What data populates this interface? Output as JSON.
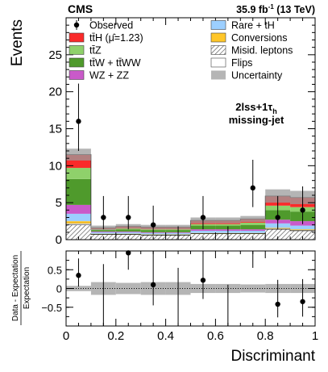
{
  "header": {
    "experiment": "CMS",
    "lumi_value": "35.9 fb",
    "lumi_exp": "-1",
    "lumi_energy": " (13 TeV)"
  },
  "annotation": {
    "channel_main": "2lss+1τ",
    "channel_sub": "h",
    "category": "missing-jet"
  },
  "colors": {
    "ttH": "#fa2a2a",
    "ttZ": "#8fd16b",
    "ttW": "#4f9a2c",
    "WZZZ": "#c95ac9",
    "Rare": "#9ccfff",
    "Conv": "#ffc629",
    "Fakes_hatch": "#555555",
    "Flips": "#ffffff",
    "Unc": "#b5b5b5"
  },
  "legend": [
    {
      "key": "Observed",
      "label": "Observed",
      "kind": "marker",
      "color": "#000000"
    },
    {
      "key": "ttH",
      "label": "tt̄H (μ̂=1.23)",
      "kind": "box",
      "color": "#fa2a2a"
    },
    {
      "key": "ttZ",
      "label": "tt̄Z",
      "kind": "box",
      "color": "#8fd16b"
    },
    {
      "key": "ttW",
      "label": "tt̄W + tt̄WW",
      "kind": "box",
      "color": "#4f9a2c"
    },
    {
      "key": "WZZZ",
      "label": "WZ + ZZ",
      "kind": "box",
      "color": "#c95ac9"
    },
    {
      "key": "Rare",
      "label": "Rare + tH",
      "kind": "box",
      "color": "#9ccfff"
    },
    {
      "key": "Conv",
      "label": "Conversions",
      "kind": "box",
      "color": "#ffc629"
    },
    {
      "key": "Fakes",
      "label": "Misid. leptons",
      "kind": "hatch",
      "color": "#555555"
    },
    {
      "key": "Flips",
      "label": "Flips",
      "kind": "box",
      "color": "#ffffff"
    },
    {
      "key": "Unc",
      "label": "Uncertainty",
      "kind": "box",
      "color": "#b5b5b5"
    }
  ],
  "chart_data": [
    {
      "type": "bar",
      "stacked": true,
      "xlabel": "",
      "ylabel": "Events",
      "xlim": [
        0,
        1
      ],
      "ylim": [
        0,
        30
      ],
      "bin_edges": [
        0,
        0.1,
        0.2,
        0.3,
        0.4,
        0.5,
        0.6,
        0.7,
        0.8,
        0.9,
        1.0
      ],
      "yticks": [
        0,
        5,
        10,
        15,
        20,
        25
      ],
      "stack": [
        {
          "key": "Fakes",
          "values": [
            2.0,
            0.7,
            0.7,
            0.6,
            0.6,
            0.8,
            0.8,
            0.8,
            1.4,
            1.2
          ]
        },
        {
          "key": "Flips",
          "values": [
            0.2,
            0.05,
            0.05,
            0.05,
            0.05,
            0.05,
            0.05,
            0.05,
            0.1,
            0.1
          ]
        },
        {
          "key": "Conv",
          "values": [
            0.3,
            0.05,
            0.05,
            0.05,
            0.05,
            0.05,
            0.05,
            0.05,
            0.1,
            0.1
          ]
        },
        {
          "key": "Rare",
          "values": [
            1.0,
            0.2,
            0.2,
            0.2,
            0.2,
            0.3,
            0.3,
            0.3,
            0.6,
            0.5
          ]
        },
        {
          "key": "WZZZ",
          "values": [
            1.2,
            0.1,
            0.1,
            0.1,
            0.1,
            0.2,
            0.2,
            0.2,
            0.5,
            0.6
          ]
        },
        {
          "key": "ttW",
          "values": [
            3.5,
            0.2,
            0.3,
            0.3,
            0.3,
            0.5,
            0.5,
            0.6,
            1.3,
            1.3
          ]
        },
        {
          "key": "ttZ",
          "values": [
            1.5,
            0.1,
            0.1,
            0.1,
            0.1,
            0.2,
            0.2,
            0.3,
            0.6,
            0.6
          ]
        },
        {
          "key": "ttH",
          "values": [
            1.8,
            0.2,
            0.3,
            0.3,
            0.3,
            0.5,
            0.5,
            0.5,
            1.3,
            1.3
          ]
        }
      ],
      "uncertainty": [
        0.8,
        0.3,
        0.3,
        0.3,
        0.3,
        0.4,
        0.4,
        0.4,
        0.9,
        0.9
      ],
      "observed": {
        "x": [
          0.05,
          0.15,
          0.25,
          0.35,
          0.45,
          0.55,
          0.65,
          0.75,
          0.85,
          0.95
        ],
        "y": [
          16,
          3,
          3,
          2,
          0,
          3,
          0,
          7,
          3,
          4
        ],
        "err_low": [
          4.0,
          1.6,
          1.6,
          1.3,
          0,
          1.6,
          0,
          2.6,
          1.6,
          1.9
        ],
        "err_high": [
          5.1,
          2.9,
          2.9,
          2.6,
          1.8,
          2.9,
          1.8,
          3.8,
          2.9,
          3.2
        ]
      }
    },
    {
      "type": "scatter",
      "xlabel": "Discriminant",
      "ylabel": "Data - Expectation / Expectation",
      "xlim": [
        0,
        1
      ],
      "ylim": [
        -1,
        1
      ],
      "yticks": [
        -0.5,
        0,
        0.5
      ],
      "xticks": [
        0,
        0.2,
        0.4,
        0.6,
        0.8,
        1
      ],
      "uncertainty": [
        0.07,
        0.17,
        0.15,
        0.17,
        0.17,
        0.12,
        0.12,
        0.11,
        0.12,
        0.12
      ],
      "x": [
        0.05,
        0.15,
        0.25,
        0.35,
        0.45,
        0.55,
        0.65,
        0.75,
        0.85,
        0.95
      ],
      "y": [
        0.35,
        null,
        0.95,
        0.1,
        null,
        0.22,
        null,
        null,
        -0.42,
        -0.35
      ],
      "err_low": [
        0.3,
        null,
        0.45,
        0.55,
        null,
        0.5,
        null,
        null,
        0.35,
        0.4
      ],
      "err_high": [
        0.45,
        null,
        0.45,
        0.9,
        null,
        0.75,
        null,
        null,
        0.65,
        0.6
      ],
      "offscale_bars": [
        {
          "x": 0.15,
          "from": -1.0,
          "to": 0.65
        },
        {
          "x": 0.45,
          "from": -1.0,
          "to": 0.55
        },
        {
          "x": 0.65,
          "from": -1.0,
          "to": 0.1
        },
        {
          "x": 0.75,
          "from": 0.55,
          "to": 1.0
        }
      ]
    }
  ],
  "axis_titles": {
    "top_y": "Events",
    "bottom_y_num": "Data - Expectation",
    "bottom_y_den": "Expectation",
    "x": "Discriminant"
  }
}
